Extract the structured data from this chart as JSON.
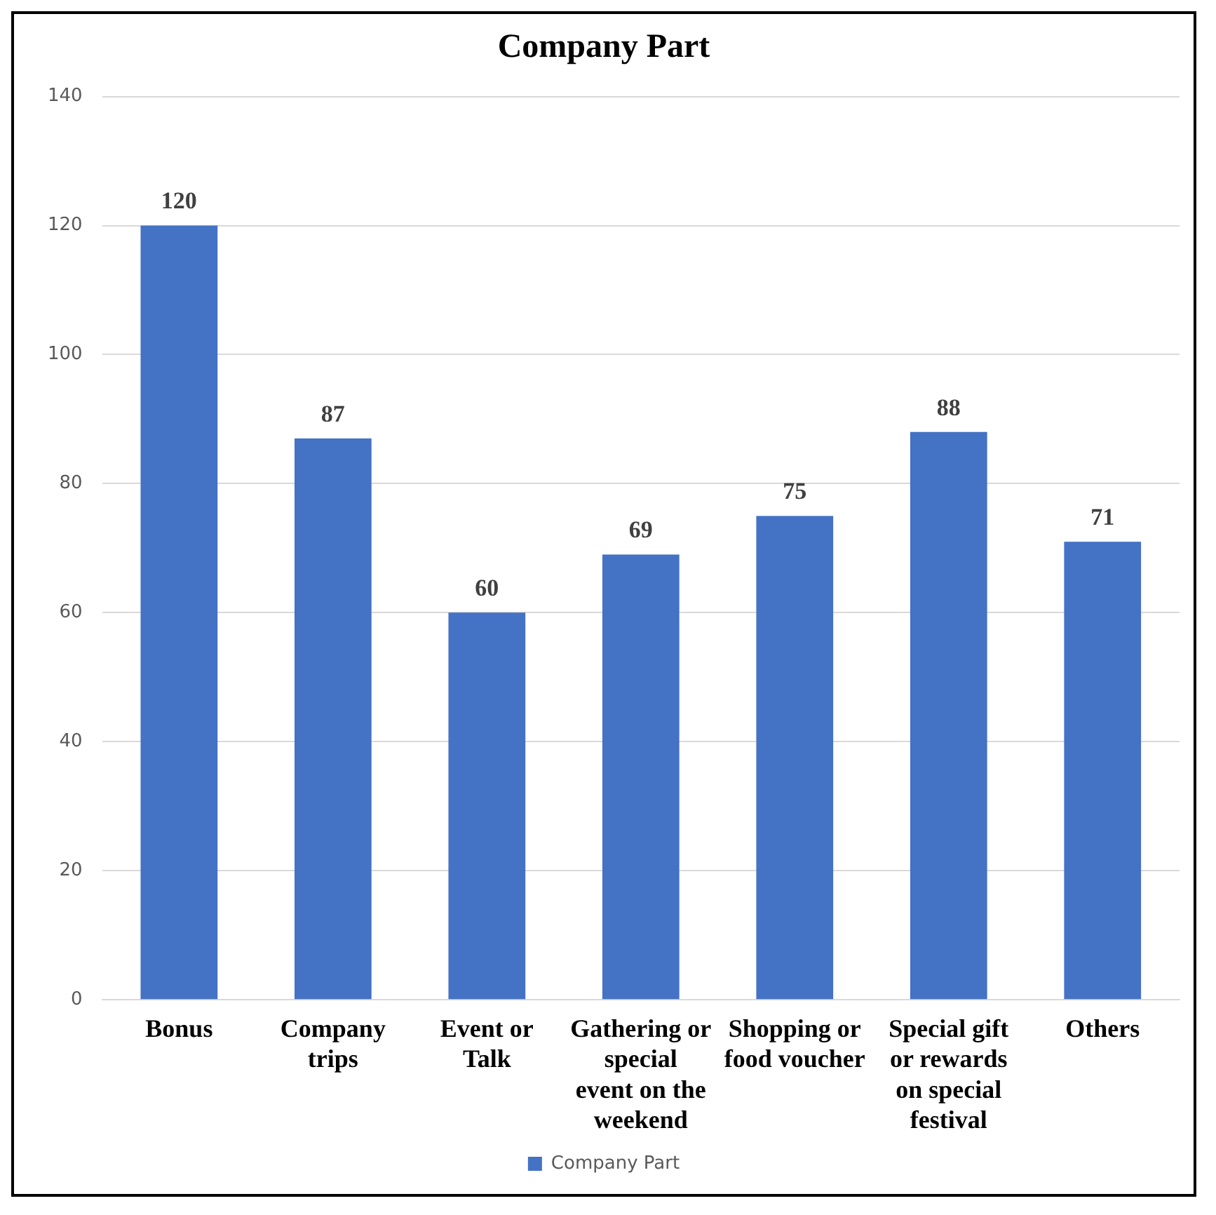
{
  "chart_data": {
    "type": "bar",
    "title": "Company Part",
    "categories": [
      "Bonus",
      "Company trips",
      "Event or Talk",
      "Gathering or special event on the weekend",
      "Shopping or food voucher",
      "Special gift or rewards on special festival",
      "Others"
    ],
    "series": [
      {
        "name": "Company Part",
        "color": "#4472c4",
        "values": [
          120,
          87,
          60,
          69,
          75,
          88,
          71
        ]
      }
    ],
    "ylim": [
      0,
      140
    ],
    "yticks": [
      0,
      20,
      40,
      60,
      80,
      100,
      120,
      140
    ],
    "grid": "y",
    "legend": "bottom",
    "data_labels": true
  }
}
